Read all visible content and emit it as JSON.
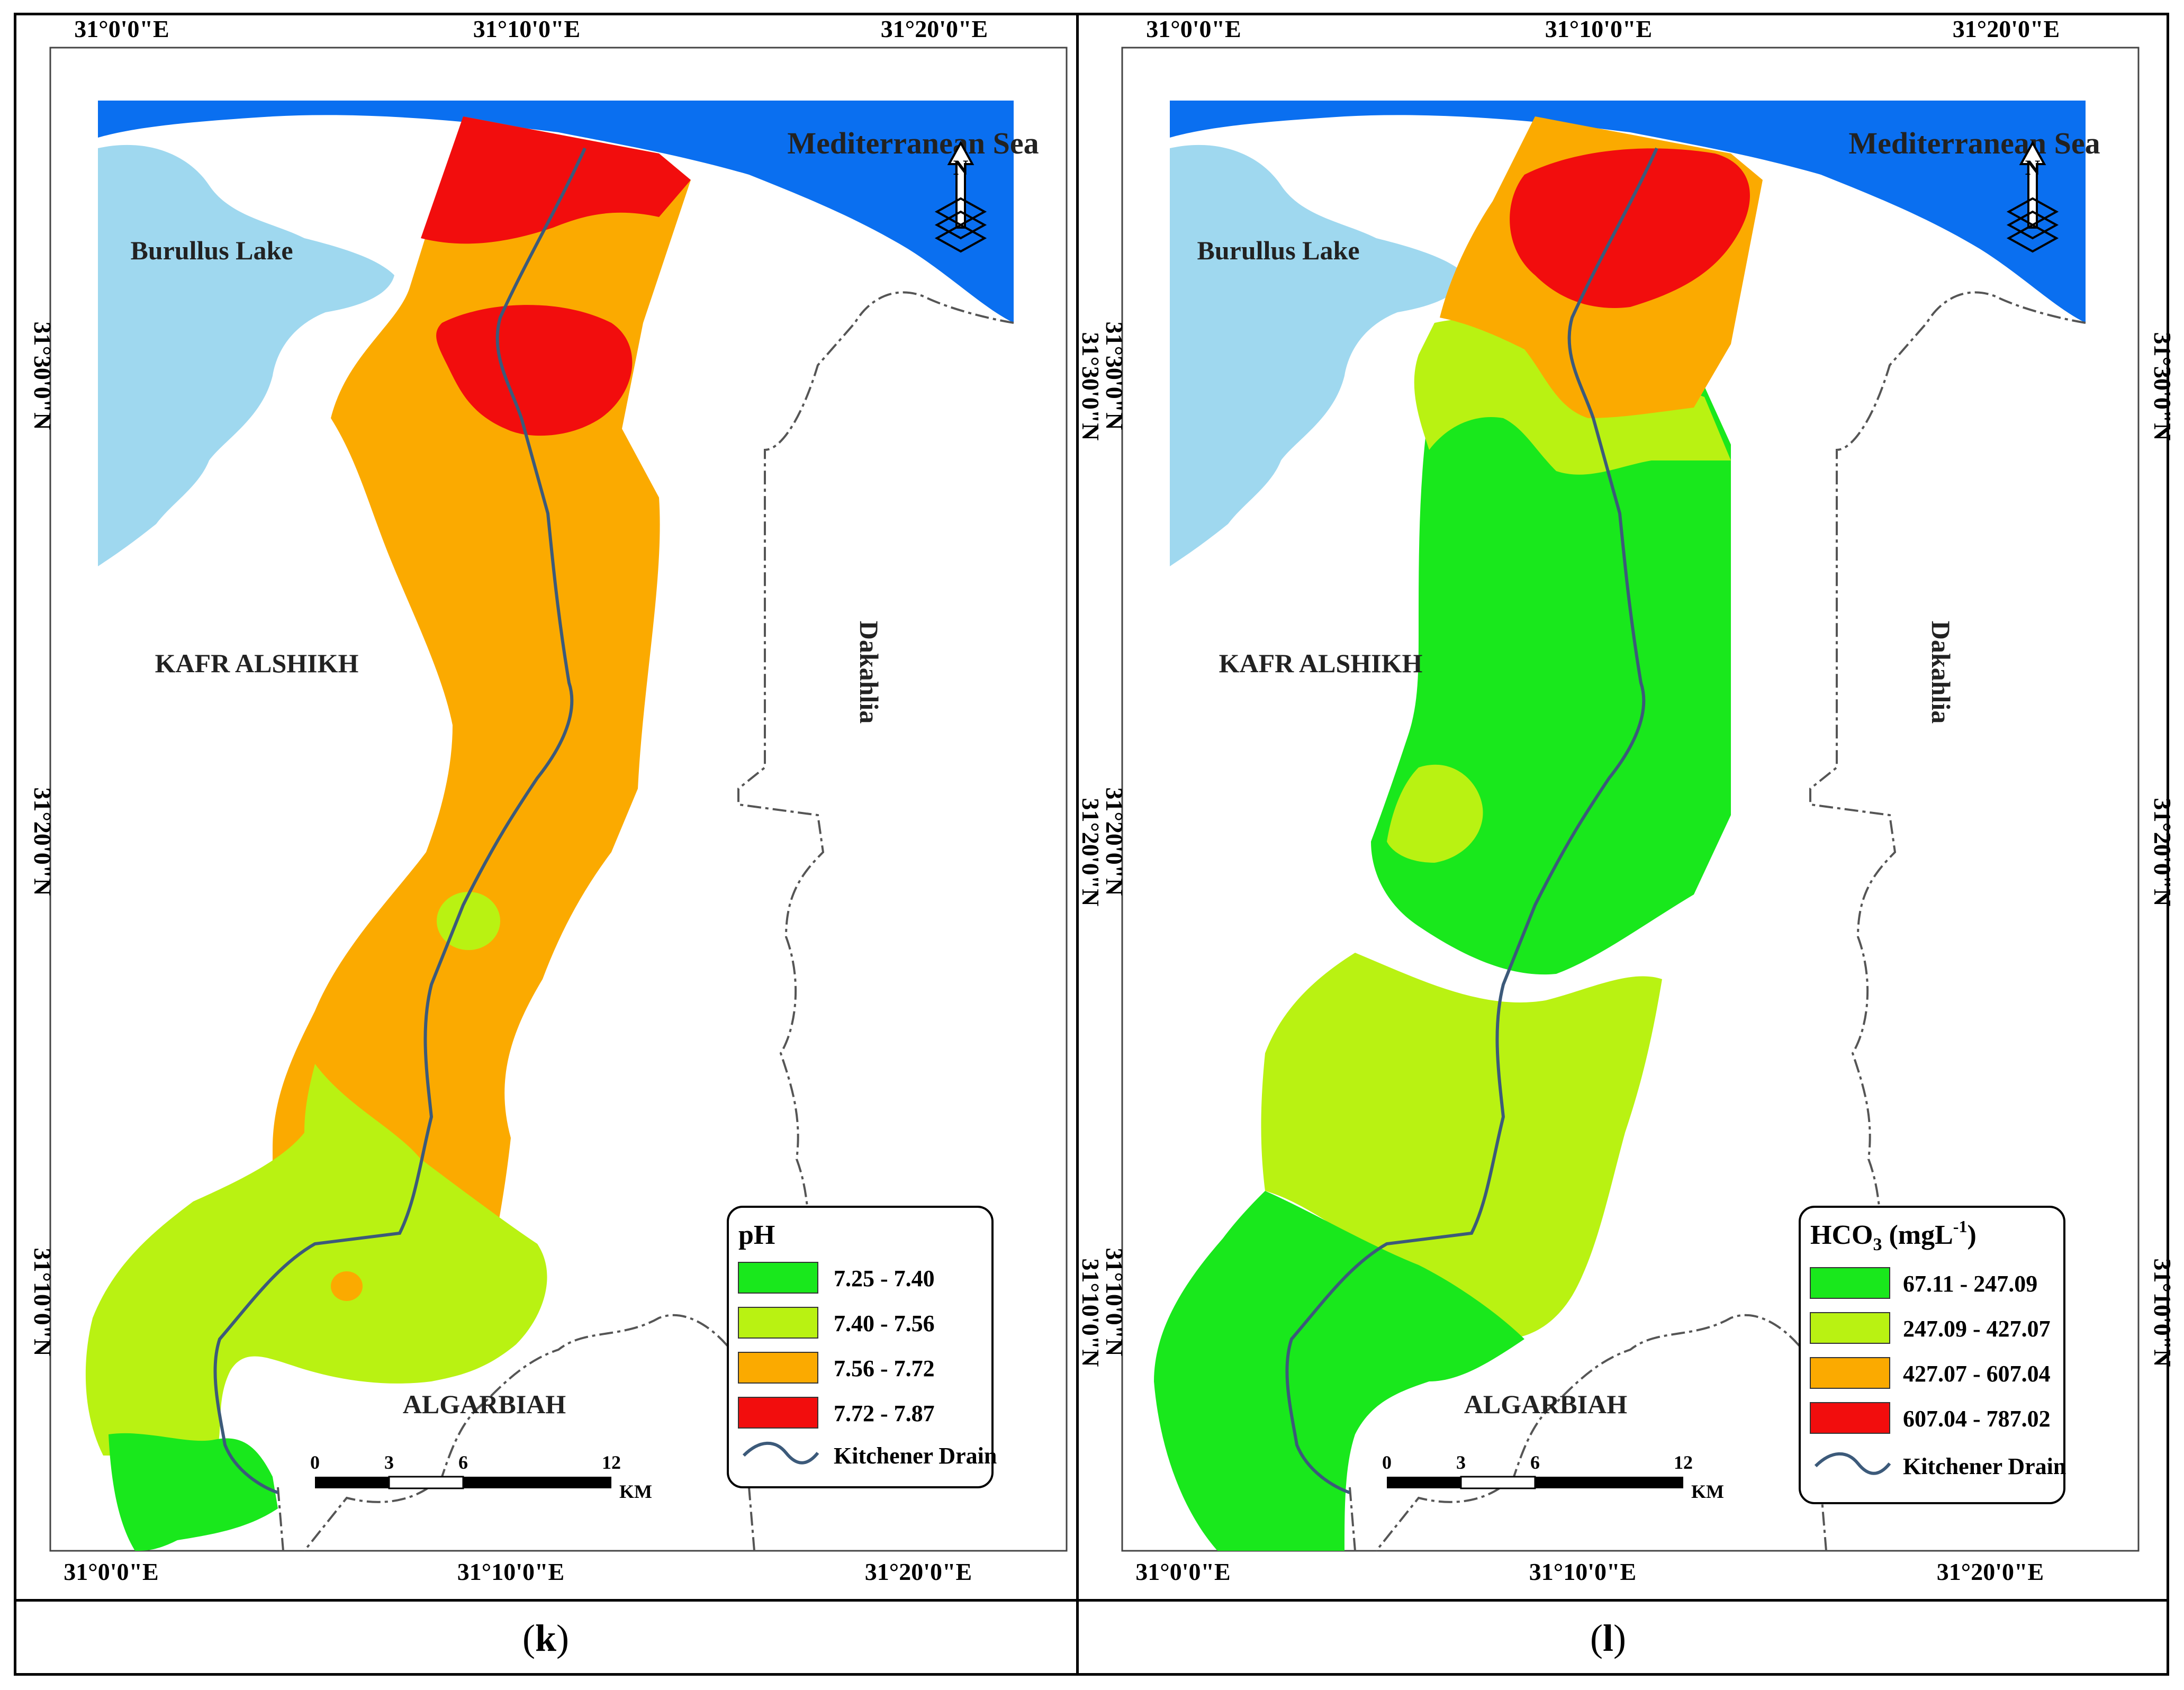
{
  "colors": {
    "sea": "#0a6ff0",
    "lake": "#9fd8ef",
    "class1": "#19e81c",
    "class2": "#b9f212",
    "class3": "#fbaa00",
    "class4": "#f20d0d",
    "drain": "#3c5a7a",
    "border": "#555555"
  },
  "panels": [
    {
      "id": "k",
      "caption": "k",
      "caption_open": "(",
      "caption_close": ")",
      "labels": {
        "sea": "Mediterranean Sea",
        "lake": "Burullus Lake",
        "kafr": "KAFR ALSHIKH",
        "dakahlia": "Dakahlia",
        "algarbiah": "ALGARBIAH"
      },
      "coords": {
        "top": [
          "31°0'0\"E",
          "31°10'0\"E",
          "31°20'0\"E"
        ],
        "bottom": [
          "31°0'0\"E",
          "31°10'0\"E",
          "31°20'0\"E"
        ],
        "left": [
          "31°30'0\"N",
          "31°20'0\"N",
          "31°10'0\"N"
        ],
        "right": [
          "31°30'0\"N",
          "31°20'0\"N",
          "31°10'0\"N"
        ]
      },
      "legend": {
        "title": "pH",
        "items": [
          "7.25 - 7.40",
          "7.40 - 7.56",
          "7.56 - 7.72",
          "7.72 - 7.87"
        ],
        "drain_label": "Kitchener Drain"
      },
      "scale": {
        "ticks": [
          "0",
          "3",
          "6",
          "12"
        ],
        "unit": "KM"
      },
      "north_icon": "north-arrow-icon"
    },
    {
      "id": "l",
      "caption": "l",
      "caption_open": "(",
      "caption_close": ")",
      "labels": {
        "sea": "Mediterranean Sea",
        "lake": "Burullus Lake",
        "kafr": "KAFR ALSHIKH",
        "dakahlia": "Dakahlia",
        "algarbiah": "ALGARBIAH"
      },
      "coords": {
        "top": [
          "31°0'0\"E",
          "31°10'0\"E",
          "31°20'0\"E"
        ],
        "bottom": [
          "31°0'0\"E",
          "31°10'0\"E",
          "31°20'0\"E"
        ],
        "left": [
          "31°30'0\"N",
          "31°20'0\"N",
          "31°10'0\"N"
        ],
        "right": [
          "31°30'0\"N",
          "31°20'0\"N",
          "31°10'0\"N"
        ]
      },
      "legend": {
        "title_main": "HCO",
        "title_sub": "3",
        "title_unit_open": " (mgL",
        "title_unit_sup": "-1",
        "title_unit_close": ")",
        "items": [
          "67.11 - 247.09",
          "247.09 - 427.07",
          "427.07 - 607.04",
          "607.04 - 787.02"
        ],
        "drain_label": "Kitchener Drain"
      },
      "scale": {
        "ticks": [
          "0",
          "3",
          "6",
          "12"
        ],
        "unit": "KM"
      },
      "north_icon": "north-arrow-icon"
    }
  ]
}
